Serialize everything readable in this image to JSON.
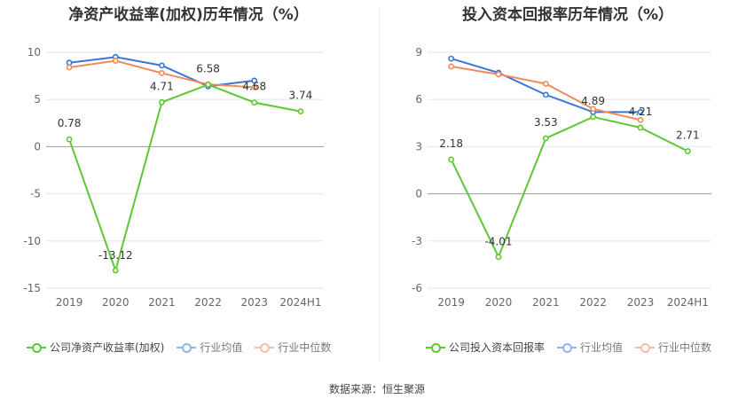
{
  "source": "数据来源：恒生聚源",
  "charts": [
    {
      "title": "净资产收益率(加权)历年情况（%）",
      "legend": [
        "公司净资产收益率(加权)",
        "行业均值",
        "行业中位数"
      ]
    },
    {
      "title": "投入资本回报率历年情况（%）",
      "legend": [
        "公司投入资本回报率",
        "行业均值",
        "行业中位数"
      ]
    }
  ],
  "colors": {
    "company": "#5cc832",
    "mean": "#3a75d8",
    "median": "#f08a5a",
    "grid": "#e6e6e6",
    "axis": "#999999"
  },
  "chart_data": [
    {
      "type": "line",
      "title": "净资产收益率(加权)历年情况（%）",
      "categories": [
        "2019",
        "2020",
        "2021",
        "2022",
        "2023",
        "2024H1"
      ],
      "yticks": [
        10,
        5,
        0,
        -5,
        -10,
        -15
      ],
      "ylim": [
        -15,
        10
      ],
      "series": [
        {
          "name": "公司净资产收益率(加权)",
          "key": "company",
          "values": [
            0.78,
            -13.12,
            4.71,
            6.58,
            4.68,
            3.74
          ],
          "labels": [
            "0.78",
            "-13.12",
            "4.71",
            "6.58",
            "4.68",
            "3.74"
          ]
        },
        {
          "name": "行业均值",
          "key": "mean",
          "values": [
            8.9,
            9.5,
            8.6,
            6.4,
            7.0,
            null
          ]
        },
        {
          "name": "行业中位数",
          "key": "median",
          "values": [
            8.4,
            9.1,
            7.8,
            6.6,
            6.3,
            null
          ]
        }
      ]
    },
    {
      "type": "line",
      "title": "投入资本回报率历年情况（%）",
      "categories": [
        "2019",
        "2020",
        "2021",
        "2022",
        "2023",
        "2024H1"
      ],
      "yticks": [
        9,
        6,
        3,
        0,
        -3,
        -6
      ],
      "ylim": [
        -6,
        9
      ],
      "series": [
        {
          "name": "公司投入资本回报率",
          "key": "company",
          "values": [
            2.18,
            -4.01,
            3.53,
            4.89,
            4.21,
            2.71
          ],
          "labels": [
            "2.18",
            "-4.01",
            "3.53",
            "4.89",
            "4.21",
            "2.71"
          ]
        },
        {
          "name": "行业均值",
          "key": "mean",
          "values": [
            8.6,
            7.7,
            6.3,
            5.2,
            5.2,
            null
          ]
        },
        {
          "name": "行业中位数",
          "key": "median",
          "values": [
            8.1,
            7.6,
            7.0,
            5.4,
            4.7,
            null
          ]
        }
      ]
    }
  ]
}
